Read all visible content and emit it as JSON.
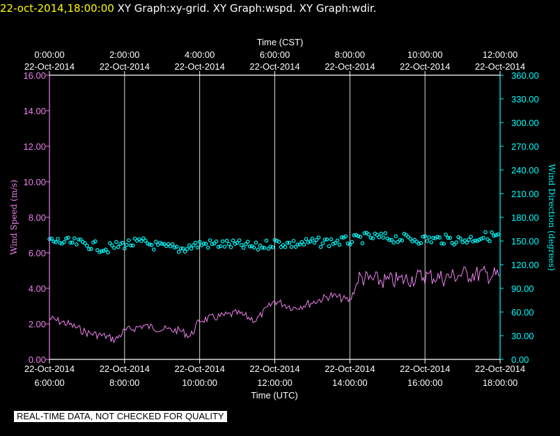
{
  "header": {
    "timestamp": "22-oct-2014,18:00:00",
    "graph_titles": [
      "XY Graph:xy-grid.",
      "XY Graph:wspd.",
      "XY Graph:wdir."
    ]
  },
  "footer_notice": "REAL-TIME DATA, NOT CHECKED FOR QUALITY",
  "colors": {
    "background": "#000000",
    "axes": "#ffffff",
    "grid": "#ffffff",
    "wind_speed": "#ee82ee",
    "wind_direction": "#00ffff",
    "timestamp": "#ffff00"
  },
  "chart_data": {
    "type": "line",
    "grid": true,
    "x_top": {
      "label": "Time (CST)",
      "ticks": [
        {
          "time": "0:00:00",
          "date": "22-Oct-2014"
        },
        {
          "time": "2:00:00",
          "date": "22-Oct-2014"
        },
        {
          "time": "4:00:00",
          "date": "22-Oct-2014"
        },
        {
          "time": "6:00:00",
          "date": "22-Oct-2014"
        },
        {
          "time": "8:00:00",
          "date": "22-Oct-2014"
        },
        {
          "time": "10:00:00",
          "date": "22-Oct-2014"
        },
        {
          "time": "12:00:00",
          "date": "22-Oct-2014"
        }
      ]
    },
    "x_bottom": {
      "label": "Time (UTC)",
      "range": [
        "2014-10-22 06:00",
        "2014-10-22 18:00"
      ],
      "ticks": [
        {
          "time": "6:00:00",
          "date": "22-Oct-2014"
        },
        {
          "time": "8:00:00",
          "date": "22-Oct-2014"
        },
        {
          "time": "10:00:00",
          "date": "22-Oct-2014"
        },
        {
          "time": "12:00:00",
          "date": "22-Oct-2014"
        },
        {
          "time": "14:00:00",
          "date": "22-Oct-2014"
        },
        {
          "time": "16:00:00",
          "date": "22-Oct-2014"
        },
        {
          "time": "18:00:00",
          "date": "22-Oct-2014"
        }
      ]
    },
    "y_left": {
      "label": "Wind Speed (m/s)",
      "range": [
        0,
        16
      ],
      "ticks": [
        "0.00",
        "2.00",
        "4.00",
        "6.00",
        "8.00",
        "10.00",
        "12.00",
        "14.00",
        "16.00"
      ]
    },
    "y_right": {
      "label": "Wind Direction (degrees)",
      "range": [
        0,
        360
      ],
      "ticks": [
        "0.00",
        "30.00",
        "60.00",
        "90.00",
        "120.00",
        "150.00",
        "180.00",
        "210.00",
        "240.00",
        "270.00",
        "300.00",
        "330.00",
        "360.00"
      ]
    },
    "series": [
      {
        "name": "Wind Speed",
        "axis": "left",
        "style": "line",
        "x": [
          "2014-10-22 06:00",
          "2014-10-22 06:30",
          "2014-10-22 07:00",
          "2014-10-22 07:30",
          "2014-10-22 07:45",
          "2014-10-22 08:00",
          "2014-10-22 08:30",
          "2014-10-22 09:00",
          "2014-10-22 09:30",
          "2014-10-22 09:45",
          "2014-10-22 10:00",
          "2014-10-22 10:30",
          "2014-10-22 11:00",
          "2014-10-22 11:30",
          "2014-10-22 12:00",
          "2014-10-22 12:30",
          "2014-10-22 13:00",
          "2014-10-22 13:30",
          "2014-10-22 14:00",
          "2014-10-22 14:15",
          "2014-10-22 14:30",
          "2014-10-22 15:00",
          "2014-10-22 15:30",
          "2014-10-22 16:00",
          "2014-10-22 16:30",
          "2014-10-22 17:00",
          "2014-10-22 17:30",
          "2014-10-22 18:00"
        ],
        "y": [
          2.3,
          2.0,
          1.5,
          1.3,
          1.1,
          1.6,
          1.9,
          1.7,
          1.6,
          1.3,
          2.2,
          2.4,
          2.6,
          2.2,
          3.3,
          2.9,
          3.2,
          3.6,
          3.3,
          4.6,
          4.5,
          4.4,
          4.5,
          4.7,
          4.6,
          4.8,
          4.8,
          4.7
        ]
      },
      {
        "name": "Wind Direction",
        "axis": "right",
        "style": "markers",
        "x": [
          "2014-10-22 06:00",
          "2014-10-22 06:30",
          "2014-10-22 07:00",
          "2014-10-22 07:30",
          "2014-10-22 08:00",
          "2014-10-22 08:30",
          "2014-10-22 09:00",
          "2014-10-22 09:30",
          "2014-10-22 10:00",
          "2014-10-22 10:30",
          "2014-10-22 11:00",
          "2014-10-22 11:30",
          "2014-10-22 12:00",
          "2014-10-22 12:30",
          "2014-10-22 13:00",
          "2014-10-22 13:30",
          "2014-10-22 14:00",
          "2014-10-22 14:30",
          "2014-10-22 15:00",
          "2014-10-22 15:30",
          "2014-10-22 16:00",
          "2014-10-22 16:30",
          "2014-10-22 17:00",
          "2014-10-22 17:30",
          "2014-10-22 18:00"
        ],
        "y": [
          150,
          148,
          146,
          140,
          146,
          148,
          142,
          140,
          146,
          146,
          145,
          142,
          148,
          146,
          148,
          149,
          150,
          155,
          154,
          153,
          152,
          152,
          151,
          155,
          157
        ]
      }
    ]
  }
}
